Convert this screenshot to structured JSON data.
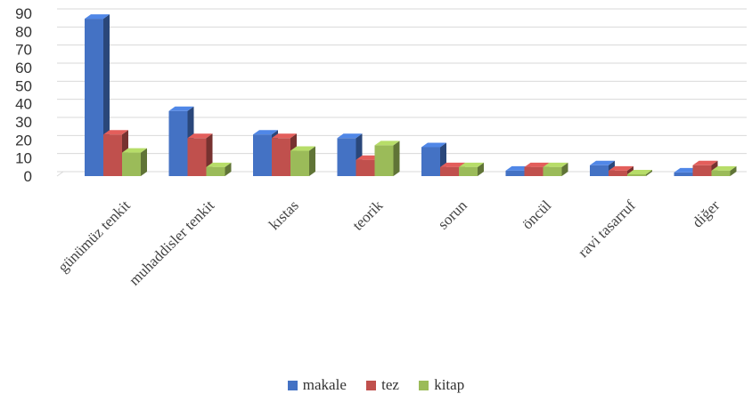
{
  "chart_data": {
    "type": "bar",
    "categories": [
      "günümüz tenkit",
      "muhaddisler tenkit",
      "kıstas",
      "teorik",
      "sorun",
      "öncül",
      "ravi tasarruf",
      "diğer"
    ],
    "series": [
      {
        "name": "makale",
        "color": "#4472C4",
        "values": [
          87,
          36,
          23,
          21,
          16,
          3,
          6,
          2
        ]
      },
      {
        "name": "tez",
        "color": "#C0504D",
        "values": [
          23,
          21,
          21,
          9,
          5,
          5,
          3,
          6
        ]
      },
      {
        "name": "kitap",
        "color": "#9BBB59",
        "values": [
          13,
          5,
          14,
          17,
          5,
          5,
          1,
          3
        ]
      }
    ],
    "yticks": [
      "0",
      "10",
      "20",
      "30",
      "40",
      "50",
      "60",
      "70",
      "80",
      "90"
    ],
    "ylim": [
      0,
      90
    ],
    "grid": true,
    "legend_position": "bottom"
  }
}
